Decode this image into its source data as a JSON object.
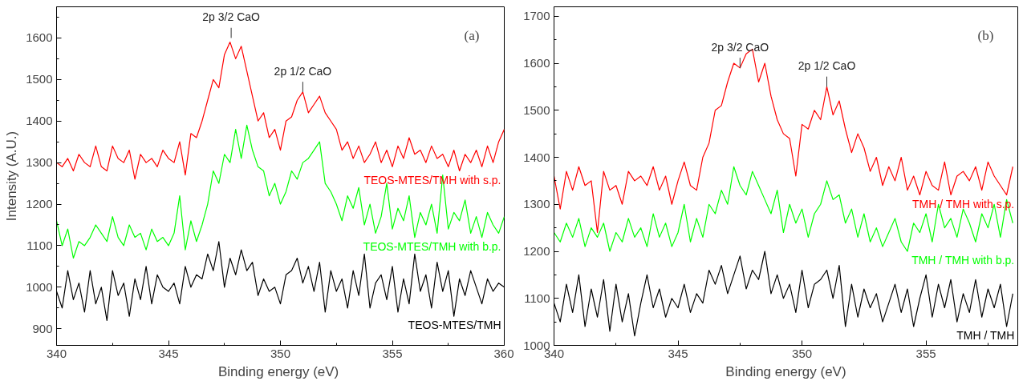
{
  "chart_data": [
    {
      "type": "line",
      "title": null,
      "xlabel": "Binding energy  (eV)",
      "ylabel": "Intensity (A.U.)",
      "grid": false,
      "xlim": [
        340,
        360
      ],
      "ylim": [
        860,
        1675
      ],
      "xticks": [
        340,
        345,
        350,
        355,
        360
      ],
      "yticks": [
        900,
        1000,
        1100,
        1200,
        1300,
        1400,
        1500,
        1600
      ],
      "x": [
        340,
        340.25,
        340.5,
        340.75,
        341,
        341.25,
        341.5,
        341.75,
        342,
        342.25,
        342.5,
        342.75,
        343,
        343.25,
        343.5,
        343.75,
        344,
        344.25,
        344.5,
        344.75,
        345,
        345.25,
        345.5,
        345.75,
        346,
        346.25,
        346.5,
        346.75,
        347,
        347.25,
        347.5,
        347.75,
        348,
        348.25,
        348.5,
        348.75,
        349,
        349.25,
        349.5,
        349.75,
        350,
        350.25,
        350.5,
        350.75,
        351,
        351.25,
        351.5,
        351.75,
        352,
        352.25,
        352.5,
        352.75,
        353,
        353.25,
        353.5,
        353.75,
        354,
        354.25,
        354.5,
        354.75,
        355,
        355.25,
        355.5,
        355.75,
        356,
        356.25,
        356.5,
        356.75,
        357,
        357.25,
        357.5,
        357.75,
        358,
        358.25,
        358.5,
        358.75,
        359,
        359.25,
        359.5,
        359.75,
        360
      ],
      "series": [
        {
          "name": "TEOS-MTES/TMH with s.p.",
          "color": "#ff0000",
          "values": [
            1300,
            1290,
            1310,
            1280,
            1320,
            1300,
            1290,
            1340,
            1290,
            1280,
            1340,
            1310,
            1300,
            1330,
            1260,
            1320,
            1300,
            1310,
            1290,
            1330,
            1310,
            1300,
            1350,
            1270,
            1370,
            1360,
            1400,
            1450,
            1500,
            1480,
            1560,
            1590,
            1550,
            1580,
            1520,
            1460,
            1400,
            1420,
            1360,
            1380,
            1330,
            1400,
            1410,
            1450,
            1470,
            1420,
            1440,
            1460,
            1420,
            1400,
            1380,
            1330,
            1350,
            1310,
            1340,
            1300,
            1320,
            1350,
            1300,
            1330,
            1290,
            1340,
            1310,
            1360,
            1320,
            1330,
            1300,
            1340,
            1310,
            1320,
            1290,
            1330,
            1280,
            1320,
            1300,
            1330,
            1290,
            1340,
            1300,
            1350,
            1380
          ]
        },
        {
          "name": "TEOS-MTES/TMH with b.p.",
          "color": "#00ff00",
          "values": [
            1160,
            1100,
            1140,
            1070,
            1110,
            1100,
            1120,
            1150,
            1130,
            1110,
            1170,
            1120,
            1100,
            1150,
            1120,
            1130,
            1090,
            1140,
            1110,
            1120,
            1100,
            1130,
            1220,
            1090,
            1160,
            1110,
            1150,
            1200,
            1280,
            1250,
            1320,
            1300,
            1380,
            1310,
            1390,
            1330,
            1290,
            1280,
            1220,
            1250,
            1200,
            1230,
            1280,
            1260,
            1300,
            1310,
            1330,
            1350,
            1250,
            1230,
            1200,
            1160,
            1220,
            1190,
            1240,
            1150,
            1200,
            1130,
            1170,
            1250,
            1140,
            1190,
            1160,
            1220,
            1120,
            1180,
            1150,
            1200,
            1130,
            1270,
            1140,
            1180,
            1160,
            1210,
            1130,
            1170,
            1120,
            1180,
            1150,
            1130,
            1170
          ]
        },
        {
          "name": "TEOS-MTES/TMH",
          "color": "#000000",
          "values": [
            990,
            950,
            1040,
            970,
            1010,
            940,
            1040,
            960,
            1000,
            920,
            1040,
            980,
            1010,
            930,
            1020,
            970,
            1050,
            960,
            1030,
            1000,
            990,
            1010,
            960,
            1050,
            1000,
            1030,
            1020,
            1080,
            1040,
            1110,
            1000,
            1070,
            1030,
            1090,
            1040,
            1060,
            980,
            1020,
            990,
            1000,
            960,
            1030,
            1040,
            1070,
            1010,
            1050,
            990,
            1060,
            940,
            1040,
            990,
            1020,
            950,
            1040,
            980,
            1080,
            950,
            1010,
            1030,
            970,
            1050,
            940,
            1020,
            960,
            1080,
            990,
            1030,
            950,
            1060,
            990,
            1040,
            930,
            1020,
            980,
            1040,
            1000,
            960,
            1020,
            990,
            1010,
            1000
          ]
        }
      ],
      "annotations": [
        {
          "text": "2p 3/2 CaO",
          "x": 347.8,
          "y": 1600
        },
        {
          "text": "2p 1/2 CaO",
          "x": 351.0,
          "y": 1470
        },
        "(a)"
      ]
    },
    {
      "type": "line",
      "title": null,
      "xlabel": "Binding energy (eV)",
      "grid": false,
      "xlim": [
        340,
        358.7
      ],
      "ylim": [
        1000,
        1720
      ],
      "xticks": [
        340,
        345,
        350,
        355
      ],
      "yticks": [
        1000,
        1100,
        1200,
        1300,
        1400,
        1500,
        1600,
        1700
      ],
      "x": [
        340,
        340.25,
        340.5,
        340.75,
        341,
        341.25,
        341.5,
        341.75,
        342,
        342.25,
        342.5,
        342.75,
        343,
        343.25,
        343.5,
        343.75,
        344,
        344.25,
        344.5,
        344.75,
        345,
        345.25,
        345.5,
        345.75,
        346,
        346.25,
        346.5,
        346.75,
        347,
        347.25,
        347.5,
        347.75,
        348,
        348.25,
        348.5,
        348.75,
        349,
        349.25,
        349.5,
        349.75,
        350,
        350.25,
        350.5,
        350.75,
        351,
        351.25,
        351.5,
        351.75,
        352,
        352.25,
        352.5,
        352.75,
        353,
        353.25,
        353.5,
        353.75,
        354,
        354.25,
        354.5,
        354.75,
        355,
        355.25,
        355.5,
        355.75,
        356,
        356.25,
        356.5,
        356.75,
        357,
        357.25,
        357.5,
        357.75,
        358,
        358.25,
        358.5
      ],
      "series": [
        {
          "name": "TMH / TMH with s.p.",
          "color": "#ff0000",
          "values": [
            1360,
            1290,
            1370,
            1330,
            1380,
            1340,
            1350,
            1240,
            1370,
            1330,
            1340,
            1300,
            1370,
            1350,
            1360,
            1340,
            1380,
            1330,
            1360,
            1300,
            1350,
            1390,
            1340,
            1330,
            1400,
            1430,
            1500,
            1510,
            1560,
            1600,
            1590,
            1620,
            1630,
            1560,
            1600,
            1530,
            1480,
            1450,
            1440,
            1360,
            1470,
            1460,
            1500,
            1480,
            1550,
            1490,
            1520,
            1460,
            1410,
            1450,
            1420,
            1370,
            1400,
            1340,
            1380,
            1350,
            1400,
            1330,
            1360,
            1320,
            1370,
            1340,
            1330,
            1390,
            1320,
            1360,
            1370,
            1350,
            1380,
            1330,
            1390,
            1360,
            1340,
            1320,
            1380
          ]
        },
        {
          "name": "TMH / TMH with b.p.",
          "color": "#00ff00",
          "values": [
            1240,
            1220,
            1260,
            1230,
            1270,
            1210,
            1250,
            1230,
            1260,
            1200,
            1240,
            1220,
            1270,
            1230,
            1250,
            1210,
            1280,
            1230,
            1260,
            1210,
            1240,
            1300,
            1220,
            1270,
            1230,
            1300,
            1280,
            1330,
            1300,
            1380,
            1340,
            1320,
            1370,
            1340,
            1310,
            1280,
            1330,
            1240,
            1300,
            1260,
            1290,
            1230,
            1280,
            1300,
            1350,
            1310,
            1320,
            1260,
            1290,
            1230,
            1280,
            1220,
            1250,
            1210,
            1240,
            1270,
            1220,
            1200,
            1260,
            1240,
            1280,
            1220,
            1300,
            1250,
            1270,
            1230,
            1290,
            1260,
            1220,
            1280,
            1250,
            1300,
            1230,
            1310,
            1260
          ]
        },
        {
          "name": "TMH / TMH",
          "color": "#000000",
          "values": [
            1090,
            1050,
            1130,
            1070,
            1150,
            1040,
            1120,
            1060,
            1140,
            1030,
            1130,
            1050,
            1110,
            1020,
            1090,
            1150,
            1080,
            1120,
            1060,
            1100,
            1080,
            1130,
            1070,
            1110,
            1090,
            1160,
            1130,
            1170,
            1110,
            1150,
            1190,
            1120,
            1160,
            1140,
            1200,
            1110,
            1150,
            1100,
            1130,
            1070,
            1160,
            1080,
            1130,
            1140,
            1160,
            1100,
            1170,
            1040,
            1130,
            1060,
            1120,
            1080,
            1110,
            1050,
            1090,
            1130,
            1070,
            1120,
            1040,
            1100,
            1150,
            1060,
            1130,
            1080,
            1140,
            1050,
            1110,
            1070,
            1140,
            1060,
            1120,
            1080,
            1130,
            1040,
            1110
          ]
        }
      ],
      "annotations": [
        {
          "text": "2p 3/2 CaO",
          "x": 347.5,
          "y": 1590
        },
        {
          "text": "2p 1/2 CaO",
          "x": 351.0,
          "y": 1550
        },
        "(b)"
      ]
    }
  ]
}
